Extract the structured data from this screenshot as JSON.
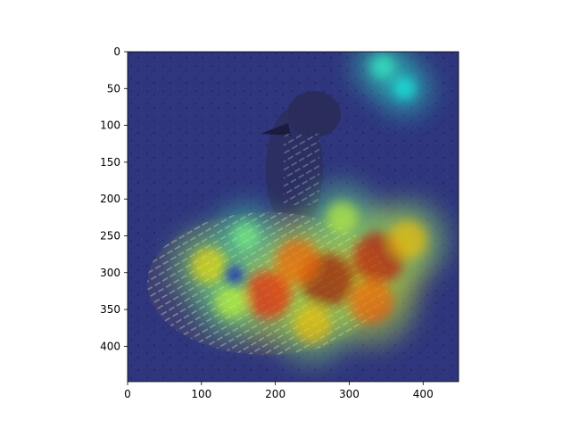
{
  "chart_data": {
    "type": "heatmap",
    "title": "",
    "xlabel": "",
    "ylabel": "",
    "xlim": [
      0,
      448
    ],
    "ylim": [
      448,
      0
    ],
    "x_ticks": [
      0,
      100,
      200,
      300,
      400
    ],
    "y_ticks": [
      0,
      50,
      100,
      150,
      200,
      250,
      300,
      350,
      400
    ],
    "x_tick_labels": [
      "0",
      "100",
      "200",
      "300",
      "400"
    ],
    "y_tick_labels": [
      "0",
      "50",
      "100",
      "150",
      "200",
      "250",
      "300",
      "350",
      "400"
    ],
    "colormap": "jet",
    "background_image": "grayscale photo of an emu-like bird sitting on gravel",
    "activation_hotspots": [
      {
        "x": 270,
        "y": 310,
        "intensity": 1.0
      },
      {
        "x": 340,
        "y": 280,
        "intensity": 0.95
      },
      {
        "x": 190,
        "y": 330,
        "intensity": 0.85
      },
      {
        "x": 230,
        "y": 285,
        "intensity": 0.75
      },
      {
        "x": 330,
        "y": 340,
        "intensity": 0.75
      },
      {
        "x": 110,
        "y": 290,
        "intensity": 0.55
      },
      {
        "x": 380,
        "y": 255,
        "intensity": 0.6
      },
      {
        "x": 250,
        "y": 370,
        "intensity": 0.6
      },
      {
        "x": 140,
        "y": 340,
        "intensity": 0.45
      },
      {
        "x": 290,
        "y": 225,
        "intensity": 0.45
      },
      {
        "x": 160,
        "y": 250,
        "intensity": 0.35
      },
      {
        "x": 345,
        "y": 20,
        "intensity": 0.25
      },
      {
        "x": 375,
        "y": 50,
        "intensity": 0.2
      }
    ],
    "activation_minima": [
      {
        "x": 145,
        "y": 303
      }
    ]
  }
}
